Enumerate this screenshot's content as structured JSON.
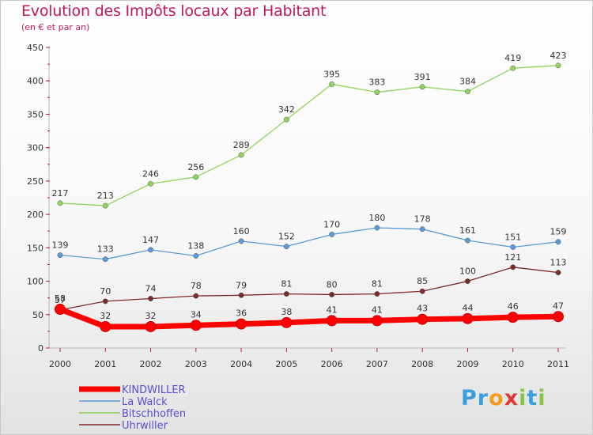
{
  "header": {
    "title": "Evolution des Impôts locaux par Habitant",
    "subtitle": "(en € et par an)"
  },
  "logo": {
    "text": "Proxiti",
    "letters": [
      {
        "char": "P",
        "color": "#3aa0dc"
      },
      {
        "char": "r",
        "color": "#3aa0dc"
      },
      {
        "char": "o",
        "color": "#f59b1c"
      },
      {
        "char": "x",
        "color": "#e53935"
      },
      {
        "char": "i",
        "color": "#8bc34a"
      },
      {
        "char": "t",
        "color": "#3aa0dc"
      },
      {
        "char": "i",
        "color": "#8bc34a"
      }
    ]
  },
  "chart_data": {
    "type": "line",
    "title": "Evolution des Impôts locaux par Habitant",
    "subtitle": "(en € et par an)",
    "xlabel": "",
    "ylabel": "",
    "x": [
      "2000",
      "2001",
      "2002",
      "2003",
      "2004",
      "2005",
      "2006",
      "2007",
      "2008",
      "2009",
      "2010",
      "2011"
    ],
    "ylim": [
      0,
      450
    ],
    "yticks": [
      0,
      50,
      100,
      150,
      200,
      250,
      300,
      350,
      400,
      450
    ],
    "grid": false,
    "legend_position": "bottom-left",
    "series": [
      {
        "name": "Uhrwiller",
        "color": "#7b2a2a",
        "values": [
          57,
          70,
          74,
          78,
          79,
          81,
          80,
          81,
          85,
          100,
          121,
          113
        ]
      },
      {
        "name": "Bitschhoffen",
        "color": "#8fd45c",
        "values": [
          217,
          213,
          246,
          256,
          289,
          342,
          395,
          383,
          391,
          384,
          419,
          423
        ]
      },
      {
        "name": "La Walck",
        "color": "#5b9bd5",
        "values": [
          139,
          133,
          147,
          138,
          160,
          152,
          170,
          180,
          178,
          161,
          151,
          159
        ]
      },
      {
        "name": "KINDWILLER",
        "color": "#ff0000",
        "values": [
          58,
          32,
          32,
          34,
          36,
          38,
          41,
          41,
          43,
          44,
          46,
          47
        ],
        "labels": [
          "58",
          "32",
          "32",
          "34",
          "36",
          "38",
          "41",
          "41",
          "43",
          "44",
          "46",
          "47"
        ]
      }
    ],
    "legend": [
      "KINDWILLER",
      "La Walck",
      "Bitschhoffen",
      "Uhrwiller"
    ]
  }
}
